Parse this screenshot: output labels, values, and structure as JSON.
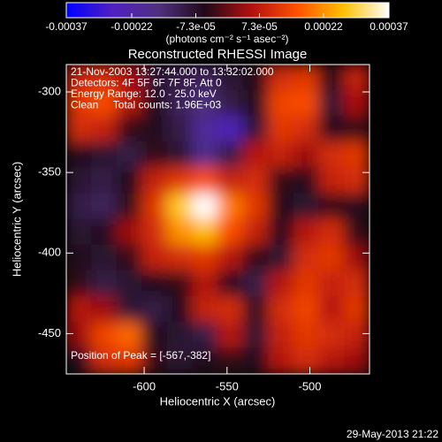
{
  "chart_data": {
    "type": "heatmap",
    "title": "Reconstructed RHESSI Image",
    "xlabel": "Heliocentric X (arcsec)",
    "ylabel": "Heliocentric Y (arcsec)",
    "xlim": [
      -647,
      -464
    ],
    "ylim": [
      -475,
      -283
    ],
    "xticks": [
      -600,
      -550,
      -500
    ],
    "yticks": [
      -300,
      -350,
      -400,
      -450
    ],
    "annotations": [
      "21-Nov-2003 13:27:44.000 to 13:32:02.000",
      "Detectors: 4F 5F 6F 7F 8F, Att 0",
      "Energy Range: 12.0 - 25.0 keV",
      "Clean     Total counts: 1.96E+03",
      "Position of Peak = [-567,-382]"
    ],
    "colorbar": {
      "label": "(photons cm⁻² s⁻¹ asec⁻²)",
      "clim": [
        -0.00037,
        0.00037
      ],
      "ticks": [
        -0.00037,
        -0.00022,
        {
          "value": -7.3e-05,
          "label": "-7.3e-05"
        },
        {
          "value": 7.3e-05,
          "label": "7.3e-05"
        },
        0.00022,
        0.00037
      ],
      "colormap": [
        "#0000ff",
        "#5020c0",
        "#503080",
        "#200818",
        "#b01010",
        "#ff5000",
        "#ffc000",
        "#ffffff"
      ]
    },
    "values": [
      [
        8e-05,
        0.0001,
        5e-05,
        -8e-05,
        -0.0001,
        -0.00012,
        -8e-05,
        -5e-05,
        0.0001,
        0.00012,
        -5e-05,
        8e-05
      ],
      [
        0.00012,
        0.00015,
        6e-05,
        -5e-05,
        -0.00012,
        -0.00015,
        -0.0001,
        -6e-05,
        0.00014,
        0.00015,
        -8e-05,
        5e-05
      ],
      [
        0.0001,
        8e-05,
        -4e-05,
        -6e-05,
        -0.0001,
        -0.0002,
        -0.00025,
        -8e-05,
        0.00012,
        0.0001,
        -6e-05,
        -4e-05
      ],
      [
        -6e-05,
        -8e-05,
        -0.0001,
        -4e-05,
        -8e-05,
        -0.00018,
        -0.0001,
        6e-05,
        8e-05,
        4e-05,
        0.0001,
        0.00012
      ],
      [
        -8e-05,
        -0.0001,
        -6e-05,
        8e-05,
        0.00012,
        0.00015,
        8e-05,
        0.0001,
        -4e-05,
        -6e-05,
        8e-05,
        0.0001
      ],
      [
        -0.0001,
        -0.00012,
        -4e-05,
        0.00012,
        0.00028,
        0.00037,
        0.0002,
        0.00012,
        -5e-05,
        -8e-05,
        -4e-05,
        -6e-05
      ],
      [
        -8e-05,
        -6e-05,
        4e-05,
        0.0001,
        0.00022,
        0.00026,
        0.00015,
        8e-05,
        -6e-05,
        6e-05,
        0.0001,
        -4e-05
      ],
      [
        -6e-05,
        -8e-05,
        -4e-05,
        8e-05,
        0.0001,
        0.00012,
        6e-05,
        -4e-05,
        -8e-05,
        0.0001,
        0.00012,
        4e-05
      ],
      [
        -4e-05,
        -0.0001,
        -8e-05,
        -6e-05,
        -4e-05,
        6e-05,
        -6e-05,
        -0.0001,
        6e-05,
        0.00012,
        8e-05,
        0.0001
      ],
      [
        6e-05,
        4e-05,
        -8e-05,
        -0.0001,
        -6e-05,
        8e-05,
        0.0001,
        -6e-05,
        0.0001,
        0.00014,
        6e-05,
        0.00012
      ],
      [
        4e-05,
        0.00014,
        0.00018,
        -6e-05,
        -8e-05,
        -0.0001,
        6e-05,
        -8e-05,
        8e-05,
        0.00012,
        0.0001,
        8e-05
      ],
      [
        -6e-05,
        0.0001,
        0.00012,
        -4e-05,
        -8e-05,
        -6e-05,
        -4e-05,
        -6e-05,
        6e-05,
        0.0001,
        6e-05,
        4e-05
      ]
    ]
  },
  "footer": "29-May-2013 21:22"
}
